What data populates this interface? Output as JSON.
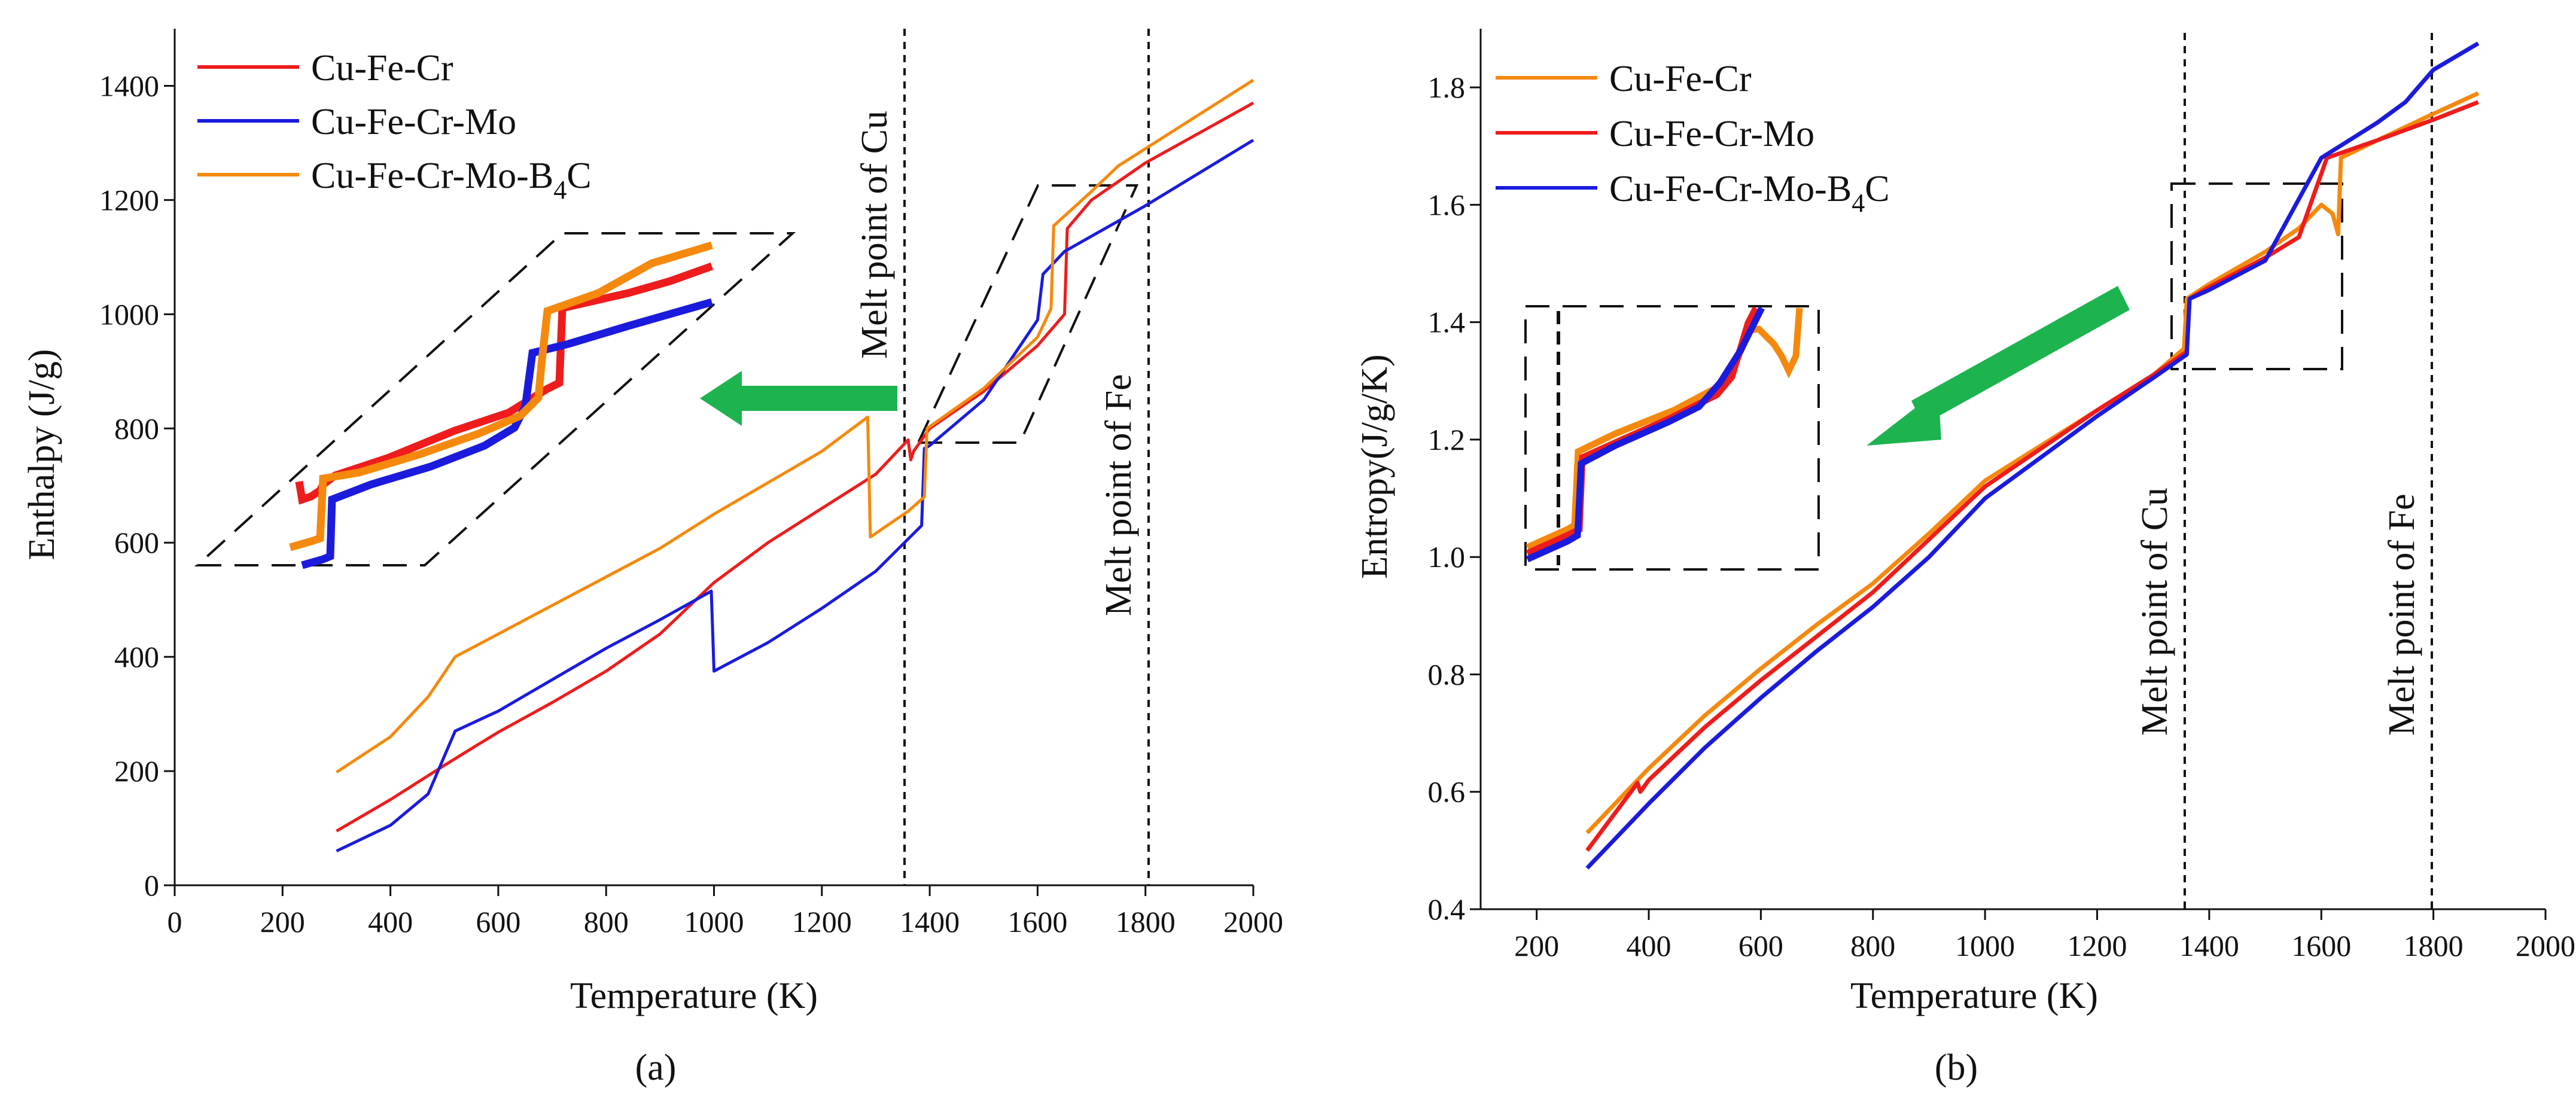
{
  "chart_data": [
    {
      "panel_label": "(a)",
      "type": "line",
      "xlabel": "Temperature (K)",
      "ylabel": "Enthalpy (J/g)",
      "xlim": [
        0,
        2000
      ],
      "ylim": [
        0,
        1500
      ],
      "xticks": [
        0,
        200,
        400,
        600,
        800,
        1000,
        1200,
        1400,
        1600,
        1800,
        2000
      ],
      "yticks": [
        0,
        200,
        400,
        600,
        800,
        1000,
        1200,
        1400
      ],
      "legend_position": "top-left",
      "series": [
        {
          "name": "Cu-Fe-Cr",
          "color": "#ee1c1c",
          "points": [
            [
              300,
              95
            ],
            [
              400,
              150
            ],
            [
              500,
              210
            ],
            [
              560,
              245
            ],
            [
              600,
              268
            ],
            [
              700,
              320
            ],
            [
              800,
              375
            ],
            [
              900,
              440
            ],
            [
              1000,
              530
            ],
            [
              1100,
              600
            ],
            [
              1200,
              660
            ],
            [
              1300,
              720
            ],
            [
              1360,
              780
            ],
            [
              1365,
              745
            ],
            [
              1370,
              760
            ],
            [
              1400,
              800
            ],
            [
              1500,
              865
            ],
            [
              1600,
              945
            ],
            [
              1650,
              1000
            ],
            [
              1655,
              1150
            ],
            [
              1700,
              1200
            ],
            [
              1800,
              1265
            ],
            [
              2000,
              1370
            ]
          ]
        },
        {
          "name": "Cu-Fe-Cr-Mo",
          "color": "#1b1bdd",
          "points": [
            [
              300,
              60
            ],
            [
              400,
              105
            ],
            [
              470,
              160
            ],
            [
              520,
              270
            ],
            [
              600,
              305
            ],
            [
              700,
              360
            ],
            [
              800,
              415
            ],
            [
              900,
              465
            ],
            [
              995,
              515
            ],
            [
              1000,
              375
            ],
            [
              1100,
              425
            ],
            [
              1200,
              485
            ],
            [
              1300,
              550
            ],
            [
              1385,
              630
            ],
            [
              1390,
              765
            ],
            [
              1400,
              770
            ],
            [
              1500,
              850
            ],
            [
              1600,
              990
            ],
            [
              1610,
              1070
            ],
            [
              1650,
              1110
            ],
            [
              1800,
              1190
            ],
            [
              2000,
              1305
            ]
          ]
        },
        {
          "name": "Cu-Fe-Cr-Mo-B4C",
          "color": "#f5890d",
          "points": [
            [
              300,
              198
            ],
            [
              400,
              260
            ],
            [
              470,
              330
            ],
            [
              520,
              400
            ],
            [
              600,
              440
            ],
            [
              700,
              490
            ],
            [
              800,
              540
            ],
            [
              900,
              590
            ],
            [
              1000,
              650
            ],
            [
              1100,
              705
            ],
            [
              1200,
              760
            ],
            [
              1285,
              820
            ],
            [
              1290,
              610
            ],
            [
              1360,
              655
            ],
            [
              1390,
              680
            ],
            [
              1395,
              800
            ],
            [
              1500,
              870
            ],
            [
              1600,
              960
            ],
            [
              1625,
              1010
            ],
            [
              1630,
              1155
            ],
            [
              1700,
              1215
            ],
            [
              1750,
              1260
            ],
            [
              1800,
              1290
            ],
            [
              2000,
              1410
            ]
          ]
        }
      ],
      "annotations": [
        "Melt point of Cu",
        "Melt point of Fe"
      ]
    },
    {
      "panel_label": "(b)",
      "type": "line",
      "xlabel": "Temperature (K)",
      "ylabel": "Entropy(J/g/K)",
      "xlim": [
        100,
        2000
      ],
      "ylim": [
        0.4,
        1.9
      ],
      "xticks": [
        200,
        400,
        600,
        800,
        1000,
        1200,
        1400,
        1600,
        1800,
        2000
      ],
      "yticks": [
        0.4,
        0.6,
        0.8,
        1.0,
        1.2,
        1.4,
        1.6,
        1.8
      ],
      "legend_position": "top-left",
      "series": [
        {
          "name": "Cu-Fe-Cr",
          "color": "#f5890d",
          "points": [
            [
              290,
              0.53
            ],
            [
              400,
              0.64
            ],
            [
              500,
              0.73
            ],
            [
              600,
              0.81
            ],
            [
              700,
              0.885
            ],
            [
              800,
              0.955
            ],
            [
              900,
              1.04
            ],
            [
              1000,
              1.13
            ],
            [
              1100,
              1.19
            ],
            [
              1200,
              1.25
            ],
            [
              1300,
              1.31
            ],
            [
              1355,
              1.355
            ],
            [
              1360,
              1.44
            ],
            [
              1400,
              1.465
            ],
            [
              1500,
              1.52
            ],
            [
              1560,
              1.56
            ],
            [
              1600,
              1.6
            ],
            [
              1620,
              1.585
            ],
            [
              1630,
              1.55
            ],
            [
              1635,
              1.68
            ],
            [
              1700,
              1.71
            ],
            [
              1800,
              1.755
            ],
            [
              1880,
              1.79
            ]
          ]
        },
        {
          "name": "Cu-Fe-Cr-Mo",
          "color": "#ee1c1c",
          "points": [
            [
              290,
              0.5
            ],
            [
              380,
              0.615
            ],
            [
              385,
              0.6
            ],
            [
              400,
              0.62
            ],
            [
              500,
              0.71
            ],
            [
              600,
              0.79
            ],
            [
              700,
              0.865
            ],
            [
              800,
              0.94
            ],
            [
              900,
              1.03
            ],
            [
              1000,
              1.12
            ],
            [
              1100,
              1.185
            ],
            [
              1200,
              1.25
            ],
            [
              1300,
              1.31
            ],
            [
              1360,
              1.35
            ],
            [
              1365,
              1.44
            ],
            [
              1400,
              1.46
            ],
            [
              1500,
              1.51
            ],
            [
              1560,
              1.545
            ],
            [
              1610,
              1.68
            ],
            [
              1700,
              1.71
            ],
            [
              1800,
              1.745
            ],
            [
              1880,
              1.775
            ]
          ]
        },
        {
          "name": "Cu-Fe-Cr-Mo-B4C",
          "color": "#1b1bdd",
          "points": [
            [
              290,
              0.47
            ],
            [
              400,
              0.58
            ],
            [
              500,
              0.675
            ],
            [
              600,
              0.76
            ],
            [
              700,
              0.84
            ],
            [
              800,
              0.915
            ],
            [
              900,
              1.0
            ],
            [
              1000,
              1.1
            ],
            [
              1100,
              1.17
            ],
            [
              1200,
              1.24
            ],
            [
              1300,
              1.305
            ],
            [
              1360,
              1.345
            ],
            [
              1365,
              1.44
            ],
            [
              1400,
              1.455
            ],
            [
              1500,
              1.505
            ],
            [
              1600,
              1.68
            ],
            [
              1700,
              1.74
            ],
            [
              1750,
              1.775
            ],
            [
              1800,
              1.83
            ],
            [
              1880,
              1.875
            ]
          ]
        }
      ],
      "annotations": [
        "Melt point of Cu",
        "Melt point of Fe"
      ]
    }
  ]
}
